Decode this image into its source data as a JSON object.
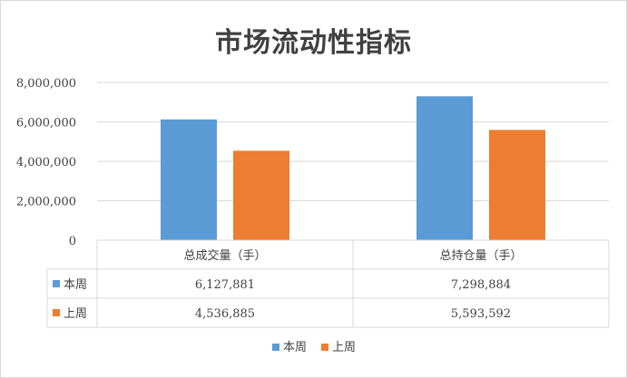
{
  "chart_data": {
    "type": "bar",
    "title": "市场流动性指标",
    "categories": [
      "总成交量（手）",
      "总持仓量（手）"
    ],
    "series": [
      {
        "name": "本周",
        "color": "#5b9bd5",
        "values": [
          6127881,
          7298884
        ],
        "labels": [
          "6,127,881",
          "7,298,884"
        ]
      },
      {
        "name": "上周",
        "color": "#ed7d31",
        "values": [
          4536885,
          5593592
        ],
        "labels": [
          "4,536,885",
          "5,593,592"
        ]
      }
    ],
    "ylim": [
      0,
      8000000
    ],
    "yticks": [
      0,
      2000000,
      4000000,
      6000000,
      8000000
    ],
    "ytick_labels": [
      "0",
      "2,000,000",
      "4,000,000",
      "6,000,000",
      "8,000,000"
    ],
    "grid": true,
    "data_table": true,
    "legend": "bottom"
  }
}
